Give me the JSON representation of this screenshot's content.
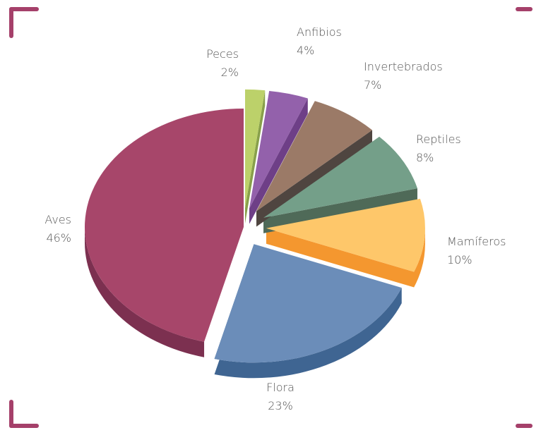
{
  "frame_color": "#a5406a",
  "chart_data": {
    "type": "pie",
    "title": "",
    "style": "3d-exploded",
    "slices": [
      {
        "name": "Aves",
        "value": 46,
        "label": "46%",
        "color": "#a7466a",
        "side_color": "#7c3050"
      },
      {
        "name": "Flora",
        "value": 23,
        "label": "23%",
        "color": "#6b8db9",
        "side_color": "#3f6592"
      },
      {
        "name": "Mamíferos",
        "value": 10,
        "label": "10%",
        "color": "#fec76a",
        "side_color": "#f4972f"
      },
      {
        "name": "Reptiles",
        "value": 8,
        "label": "8%",
        "color": "#749f89",
        "side_color": "#4f6a58"
      },
      {
        "name": "Invertebrados",
        "value": 7,
        "label": "7%",
        "color": "#9b7a67",
        "side_color": "#4f4540"
      },
      {
        "name": "Anfibios",
        "value": 4,
        "label": "4%",
        "color": "#9361ab",
        "side_color": "#6e3f87"
      },
      {
        "name": "Peces",
        "value": 2,
        "label": "2%",
        "color": "#bcd16a",
        "side_color": "#88a04a"
      }
    ]
  }
}
